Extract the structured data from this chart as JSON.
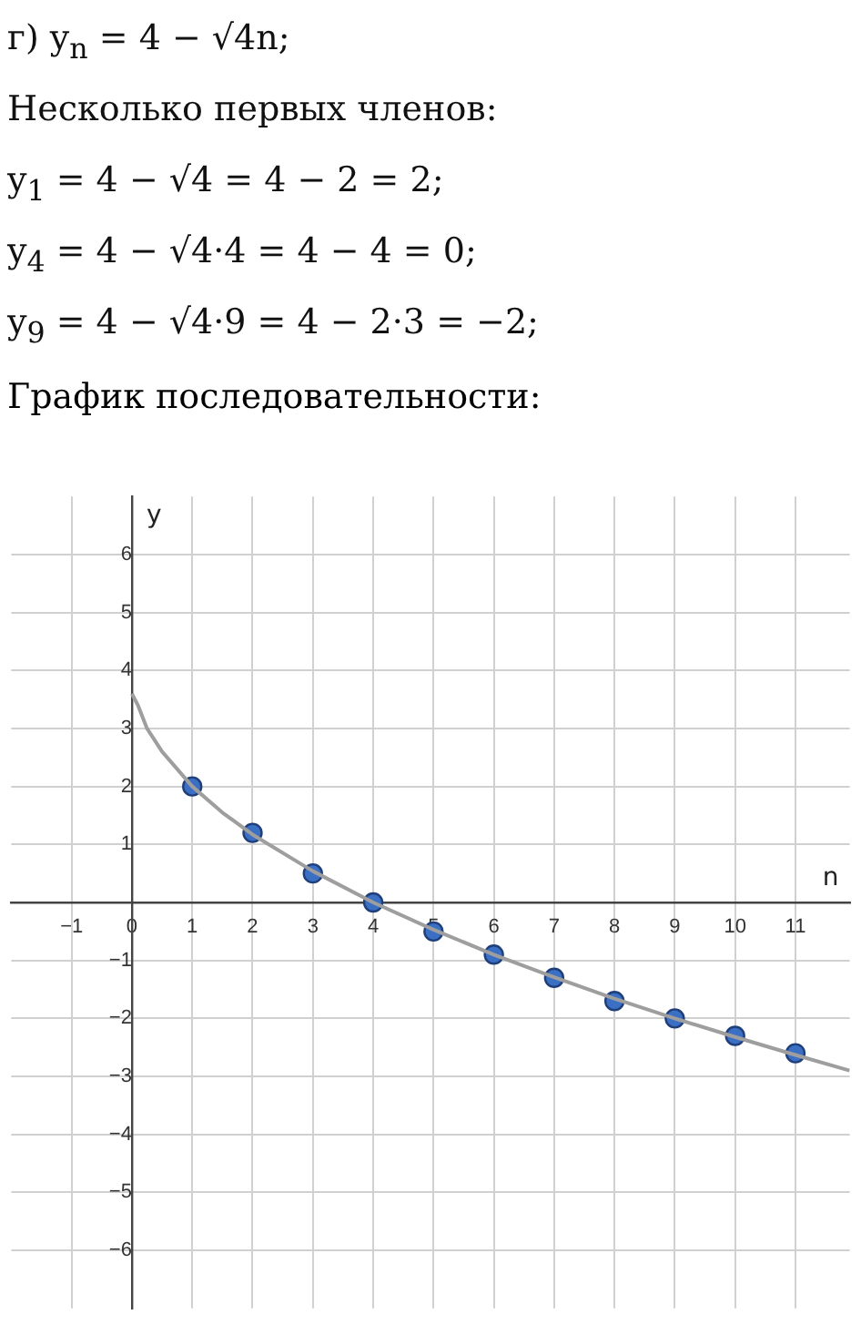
{
  "chart_data": {
    "type": "scatter",
    "title": "График последовательности:",
    "annotations": [
      "г) y$_{n}$ = 4 − √4n;",
      "Несколько первых членов:",
      "y$_{1}$ = 4 − √4 = 4 − 2 = 2;",
      "y$_{4}$ = 4 − √4·4 = 4 − 4 = 0;",
      "y$_{9}$ = 4 − √4·9 = 4 − 2·3 = −2;"
    ],
    "xlabel": "n",
    "ylabel": "y",
    "series": [
      {
        "type": "line",
        "marker": "none",
        "color": "#9e9e9e",
        "x": [
          0,
          0.1,
          0.25,
          0.5,
          1,
          1.5,
          2,
          3,
          4,
          5,
          6,
          7,
          8,
          9,
          10,
          11,
          11.9
        ],
        "values": [
          3.6,
          3.4,
          3.0,
          2.6,
          2,
          1.55,
          1.17,
          0.54,
          0,
          -0.47,
          -0.9,
          -1.29,
          -1.66,
          -2,
          -2.32,
          -2.63,
          -2.9
        ]
      },
      {
        "marker": "circle",
        "color": "#3a6fc4",
        "x": [
          1,
          2,
          3,
          4,
          5,
          6,
          7,
          8,
          9,
          10,
          11
        ],
        "values": [
          2,
          1.2,
          0.5,
          0,
          -0.5,
          -0.9,
          -1.3,
          -1.7,
          -2,
          -2.3,
          -2.6
        ]
      }
    ],
    "xlim": [
      -2,
      11.9
    ],
    "ylim": [
      -7,
      7
    ],
    "xticks": [
      -1,
      0,
      1,
      2,
      3,
      4,
      5,
      6,
      7,
      8,
      9,
      10,
      11
    ],
    "yticks": [
      -6,
      -5,
      -4,
      -3,
      -2,
      -1,
      {
        "value": 0,
        "label": null
      },
      1,
      2,
      3,
      4,
      5,
      6
    ],
    "grid": true,
    "line_style": "solid",
    "legend": false
  }
}
